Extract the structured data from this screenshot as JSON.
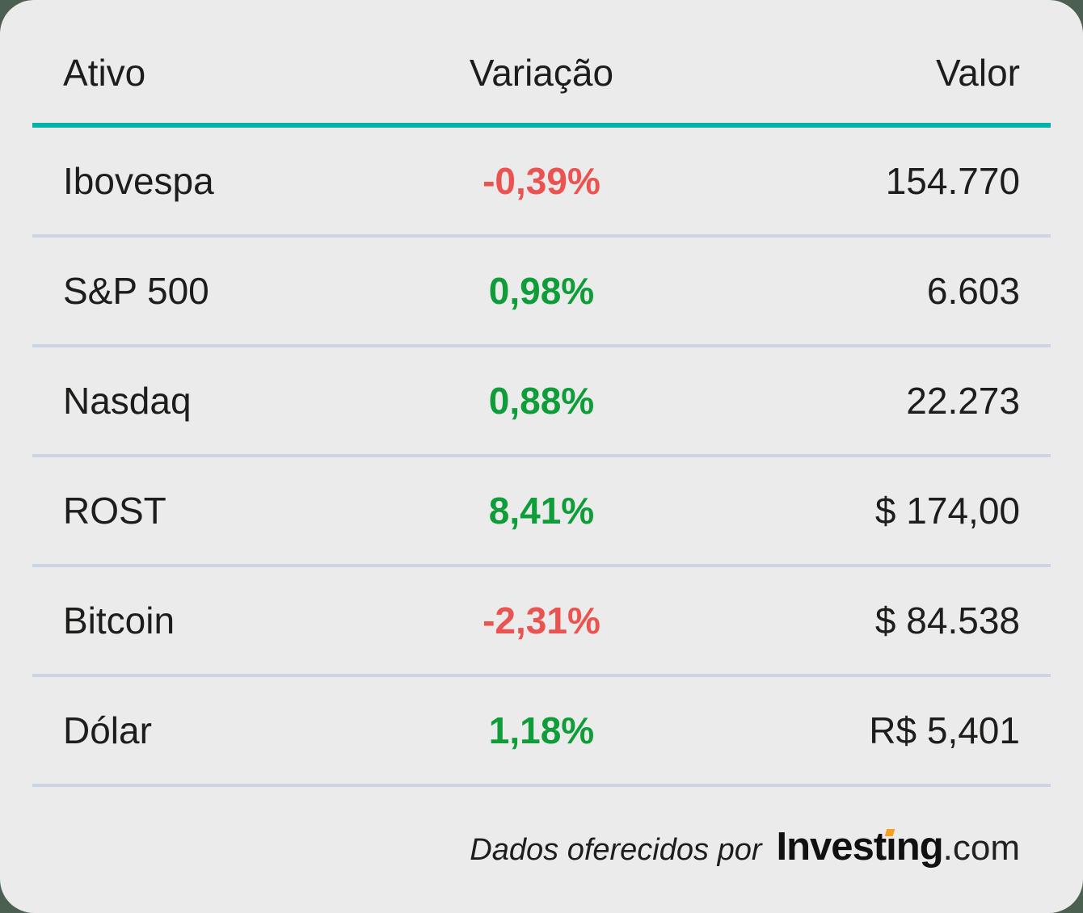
{
  "page": {
    "outer_background_color": "#4c6052",
    "card_background_color": "#ebebeb"
  },
  "table": {
    "columns": [
      {
        "key": "ativo",
        "label": "Ativo",
        "align": "left"
      },
      {
        "key": "variacao",
        "label": "Variação",
        "align": "center"
      },
      {
        "key": "valor",
        "label": "Valor",
        "align": "right"
      }
    ],
    "header_rule_color": "#00b2a8",
    "row_divider_color": "#ccd3e2",
    "positive_color": "#0f9d3a",
    "negative_color": "#ea5350",
    "rows": [
      {
        "ativo": "Ibovespa",
        "variacao": "-0,39%",
        "direction": "negative",
        "valor": "154.770"
      },
      {
        "ativo": "S&P 500",
        "variacao": "0,98%",
        "direction": "positive",
        "valor": "6.603"
      },
      {
        "ativo": "Nasdaq",
        "variacao": "0,88%",
        "direction": "positive",
        "valor": "22.273"
      },
      {
        "ativo": "ROST",
        "variacao": "8,41%",
        "direction": "positive",
        "valor": "$ 174,00"
      },
      {
        "ativo": "Bitcoin",
        "variacao": "-2,31%",
        "direction": "negative",
        "valor": "$ 84.538"
      },
      {
        "ativo": "Dólar",
        "variacao": "1,18%",
        "direction": "positive",
        "valor": "R$ 5,401"
      }
    ]
  },
  "footer": {
    "caption": "Dados oferecidos por",
    "logo": {
      "pre": "Invest",
      "i": "ı",
      "post": "ng",
      "com": ".com",
      "accent_color": "#f7a01d"
    }
  }
}
